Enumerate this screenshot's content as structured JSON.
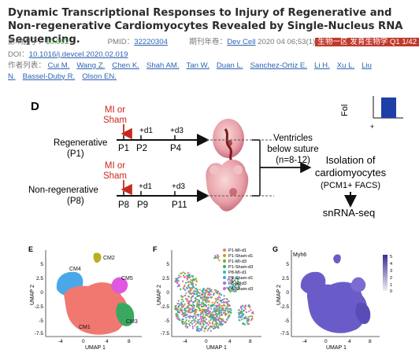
{
  "article": {
    "title": "Dynamic Transcriptional Responses to Injury of Regenerative and Non-regenerative Cardiomyocytes Revealed by Single-Nucleus RNA Sequencing.",
    "impact_label": "影响因子：",
    "impact_value": "10.092",
    "pmid_label": "PMID：",
    "pmid_value": "32220304",
    "journal_label": "期刊年卷：",
    "journal_value": "Dev Cell",
    "journal_date": " 2020 04 06;53(1)",
    "journal_tag": "生物一区 发育生物学 Q1 1/42",
    "doi_label": "DOI：",
    "doi_value": "10.1016/j.devcel.2020.02.019",
    "authors_label": "作者列表：",
    "authors": [
      "Cui M.",
      "Wang Z.",
      "Chen K.",
      "Shah AM.",
      "Tan W.",
      "Duan L.",
      "Sanchez-Ortiz E.",
      "Li H.",
      "Xu L.",
      "Liu N.",
      "Bassel-Duby R.",
      "Olson EN."
    ]
  },
  "figure_d": {
    "panel": "D",
    "mi_sham_line1": "MI or",
    "mi_sham_line2": "Sham",
    "row1_label": "Regenerative",
    "row1_sub": "(P1)",
    "row2_label": "Non-regenerative",
    "row2_sub": "(P8)",
    "d1": "+d1",
    "d3": "+d3",
    "row1_ticks": [
      "P1",
      "P2",
      "P4"
    ],
    "row2_ticks": [
      "P8",
      "P9",
      "P11"
    ],
    "ventricles": [
      "Ventricles",
      "below suture",
      "(n=8-12)"
    ],
    "isolation": [
      "Isolation of",
      "cardiomyocytes",
      "(PCM1+ FACS)"
    ],
    "snrna": "snRNA-seq",
    "inset_axis": "Fol",
    "inset_tick": "+"
  },
  "figure_e": {
    "panel": "E",
    "clusters": [
      "CM1",
      "CM2",
      "CM3",
      "CM4",
      "CM5"
    ],
    "colors": {
      "CM1": "#f07870",
      "CM2": "#b8b020",
      "CM3": "#3aa860",
      "CM4": "#4aa8e8",
      "CM5": "#e058e0"
    }
  },
  "figure_f": {
    "panel": "F",
    "legend": [
      "P1-MI-d1",
      "P1-Sham-d1",
      "P1-MI-d3",
      "P1-Sham-d3",
      "P8-MI-d1",
      "P8-Sham-d1",
      "P8-MI-d3",
      "P8-Sham-d3"
    ],
    "legend_colors": [
      "#f07870",
      "#c8a020",
      "#70b030",
      "#30b070",
      "#30b8c0",
      "#40a0e8",
      "#a070e0",
      "#e060c0"
    ]
  },
  "figure_g": {
    "panel": "G",
    "gene": "Myh6",
    "colorbar_ticks": [
      "5",
      "4",
      "3",
      "2",
      "1",
      "0"
    ],
    "fill": "#6a5cc8"
  },
  "umap_axes": {
    "xlabel": "UMAP 1",
    "ylabel": "UMAP 2",
    "yticks": [
      "5",
      "2.5",
      "0",
      "-2.5",
      "-5",
      "-7.5"
    ],
    "xticks": [
      "-4",
      "0",
      "4",
      "8"
    ]
  }
}
